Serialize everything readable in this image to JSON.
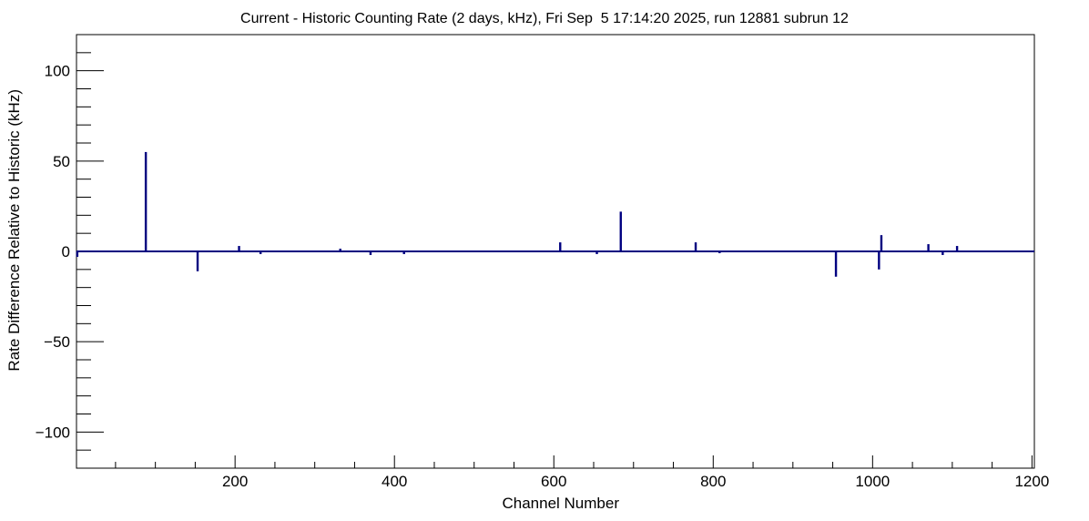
{
  "chart_data": {
    "type": "bar",
    "title": "Current - Historic Counting Rate (2 days, kHz), Fri Sep  5 17:14:20 2025, run 12881 subrun 12",
    "xlabel": "Channel Number",
    "ylabel": "Rate Difference Relative to Historic (kHz)",
    "xlim": [
      1,
      1203
    ],
    "ylim": [
      -120,
      120
    ],
    "x_ticks": [
      "200",
      "400",
      "600",
      "800",
      "1000",
      "1200"
    ],
    "y_ticks": [
      "−100",
      "−50",
      "0",
      "50",
      "100"
    ],
    "x_tick_values": [
      200,
      400,
      600,
      800,
      1000,
      1200
    ],
    "y_tick_values": [
      -100,
      -50,
      0,
      50,
      100
    ],
    "grid": false,
    "legend": "none",
    "series": [
      {
        "color": "#000080",
        "x": [
          2,
          88,
          153,
          205,
          232,
          332,
          370,
          412,
          608,
          654,
          684,
          778,
          808,
          954,
          1008,
          1011,
          1070,
          1088,
          1106
        ],
        "values": [
          -3,
          55,
          -11,
          3,
          -1.5,
          1.5,
          -2,
          -1.5,
          5,
          -1.5,
          22,
          5,
          -1,
          -14,
          -10,
          9,
          4,
          -2,
          3
        ]
      }
    ]
  }
}
